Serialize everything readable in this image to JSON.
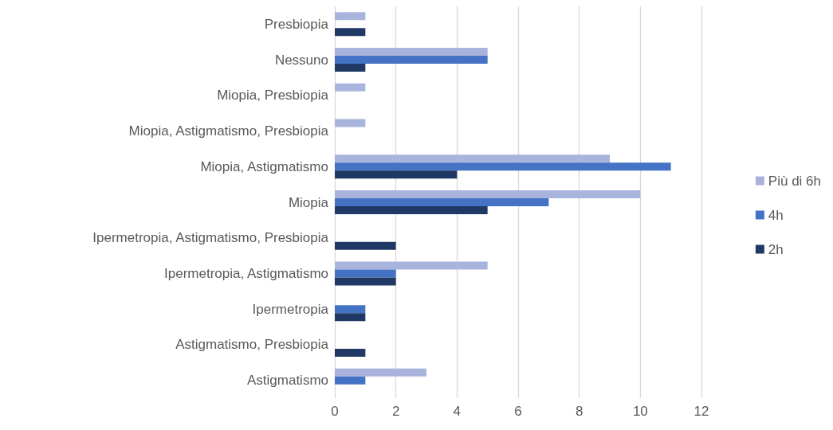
{
  "chart_data": {
    "type": "bar",
    "orientation": "horizontal",
    "categories": [
      "Presbiopia",
      "Nessuno",
      "Miopia, Presbiopia",
      "Miopia, Astigmatismo, Presbiopia",
      "Miopia, Astigmatismo",
      "Miopia",
      "Ipermetropia, Astigmatismo, Presbiopia",
      "Ipermetropia, Astigmatismo",
      "Ipermetropia",
      "Astigmatismo, Presbiopia",
      "Astigmatismo"
    ],
    "series": [
      {
        "name": "Più di 6h",
        "color": "#a9b4dc",
        "values": [
          1,
          5,
          1,
          1,
          9,
          10,
          0,
          5,
          0,
          0,
          3
        ]
      },
      {
        "name": "4h",
        "color": "#4472c4",
        "values": [
          0,
          5,
          0,
          0,
          11,
          7,
          0,
          2,
          1,
          0,
          1
        ]
      },
      {
        "name": "2h",
        "color": "#203864",
        "values": [
          1,
          1,
          0,
          0,
          4,
          5,
          2,
          2,
          1,
          1,
          0
        ]
      }
    ],
    "xlim": [
      0,
      12
    ],
    "xticks": [
      0,
      2,
      4,
      6,
      8,
      10,
      12
    ],
    "grid": "x",
    "legend": "right"
  }
}
